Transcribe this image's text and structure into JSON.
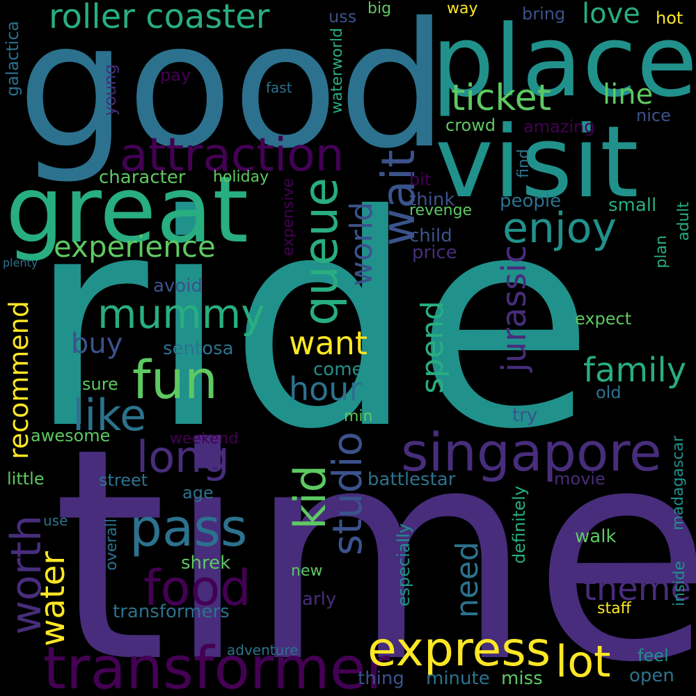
{
  "background": "#000000",
  "palette": {
    "purple": "#440154",
    "indigo": "#472d7b",
    "slate": "#3b528b",
    "blue": "#2c728e",
    "teal": "#21918c",
    "green": "#28ae80",
    "lime": "#5ec962",
    "yellow": "#fde725"
  },
  "words": {
    "ride": "ride",
    "time": "time",
    "good": "good",
    "place": "place",
    "visit": "visit",
    "great": "great",
    "transformer": "transformer",
    "express": "express",
    "singapore": "singapore",
    "attraction": "attraction",
    "queue": "queue",
    "fun": "fun",
    "pass": "pass",
    "food": "food",
    "roller_coaster": "roller coaster",
    "ticket": "ticket",
    "wait": "wait",
    "enjoy": "enjoy",
    "mummy": "mummy",
    "lot": "lot",
    "long": "long",
    "like": "like",
    "worth": "worth",
    "studio": "studio",
    "kid": "kid",
    "experience": "experience",
    "jurassic": "jurassic",
    "family": "family",
    "theme": "theme",
    "want": "want",
    "hour": "hour",
    "world": "world",
    "water": "water",
    "need": "need",
    "spend": "spend",
    "love": "love",
    "line": "line",
    "recommend": "recommend",
    "buy": "buy",
    "character": "character",
    "walk": "walk",
    "expect": "expect",
    "battlestar": "battlestar",
    "transformers": "transformers",
    "definitely": "definitely",
    "madagascar": "madagascar",
    "crowd": "crowd",
    "amazing": "amazing",
    "people": "people",
    "small": "small",
    "child": "child",
    "price": "price",
    "think": "think",
    "revenge": "revenge",
    "come": "come",
    "sentosa": "sentosa",
    "avoid": "avoid",
    "awesome": "awesome",
    "sure": "sure",
    "weekend": "weekend",
    "little": "little",
    "street": "street",
    "age": "age",
    "shrek": "shrek",
    "new": "new",
    "early": "early",
    "adventure": "adventure",
    "thing": "thing",
    "minute": "minute",
    "miss": "miss",
    "open": "open",
    "feel": "feel",
    "staff": "staff",
    "movie": "movie",
    "old": "old",
    "try": "try",
    "min": "min",
    "use": "use",
    "overall": "overall",
    "especially": "especially",
    "inside": "inside",
    "adult": "adult",
    "plan": "plan",
    "expensive": "expensive",
    "holiday": "holiday",
    "bit": "bit",
    "find": "find",
    "nice": "nice",
    "hot": "hot",
    "bring": "bring",
    "way": "way",
    "big": "big",
    "uss": "uss",
    "waterworld": "waterworld",
    "fast": "fast",
    "pay": "pay",
    "young": "young",
    "galactica": "galactica",
    "plenty": "plenty"
  }
}
